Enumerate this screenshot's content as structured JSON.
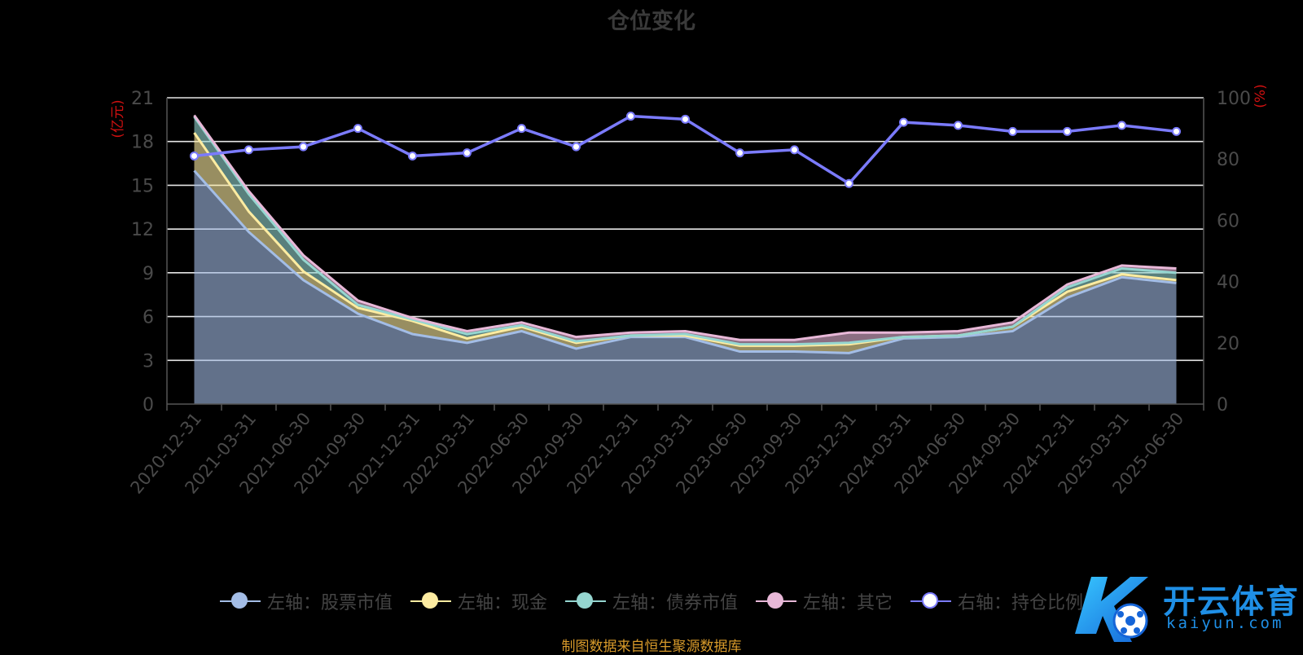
{
  "chart_data": {
    "type": "area",
    "title": "仓位变化",
    "left_axis_unit": "(亿元)",
    "right_axis_unit": "(%)",
    "categories": [
      "2020-12-31",
      "2021-03-31",
      "2021-06-30",
      "2021-09-30",
      "2021-12-31",
      "2022-03-31",
      "2022-06-30",
      "2022-09-30",
      "2022-12-31",
      "2023-03-31",
      "2023-06-30",
      "2023-09-30",
      "2023-12-31",
      "2024-03-31",
      "2024-06-30",
      "2024-09-30",
      "2024-12-31",
      "2025-03-31",
      "2025-06-30"
    ],
    "ylim_left": [
      0,
      21
    ],
    "yticks_left": [
      0,
      3,
      6,
      9,
      12,
      15,
      18,
      21
    ],
    "ylim_right": [
      0,
      100
    ],
    "yticks_right": [
      0,
      20,
      40,
      60,
      80,
      100
    ],
    "stacked": true,
    "grid": true,
    "legend_position": "bottom",
    "series": [
      {
        "name": "左轴：股票市值",
        "axis": "left",
        "kind": "area",
        "color": "#a3bde6",
        "values": [
          16.0,
          11.8,
          8.5,
          6.2,
          4.8,
          4.2,
          5.0,
          3.8,
          4.6,
          4.6,
          3.6,
          3.6,
          3.5,
          4.5,
          4.6,
          5.0,
          7.3,
          8.7,
          8.3
        ]
      },
      {
        "name": "左轴：现金",
        "axis": "left",
        "kind": "area",
        "color": "#fdeca1",
        "values": [
          2.6,
          1.4,
          0.6,
          0.4,
          0.9,
          0.3,
          0.3,
          0.4,
          0.1,
          0.1,
          0.4,
          0.4,
          0.6,
          0.1,
          0.1,
          0.3,
          0.4,
          0.2,
          0.2
        ]
      },
      {
        "name": "左轴：债券市值",
        "axis": "left",
        "kind": "area",
        "color": "#95d6d0",
        "values": [
          1.1,
          1.2,
          0.8,
          0.2,
          0.1,
          0.3,
          0.1,
          0.1,
          0.0,
          0.1,
          0.1,
          0.1,
          0.1,
          0.0,
          0.0,
          0.0,
          0.3,
          0.4,
          0.5
        ]
      },
      {
        "name": "左轴：其它",
        "axis": "left",
        "kind": "area",
        "color": "#e8b8d8",
        "values": [
          0.1,
          0.2,
          0.3,
          0.3,
          0.1,
          0.2,
          0.2,
          0.3,
          0.2,
          0.2,
          0.3,
          0.3,
          0.7,
          0.3,
          0.3,
          0.3,
          0.2,
          0.2,
          0.3
        ]
      },
      {
        "name": "右轴：持仓比例",
        "axis": "right",
        "kind": "line",
        "color": "#7b7bff",
        "values": [
          81,
          83,
          84,
          90,
          81,
          82,
          90,
          84,
          94,
          93,
          82,
          83,
          72,
          92,
          91,
          89,
          89,
          91,
          89
        ]
      }
    ]
  },
  "source_note": "制图数据来自恒生聚源数据库",
  "watermark": {
    "main": "开云体育",
    "sub": "kaiyun.com"
  }
}
